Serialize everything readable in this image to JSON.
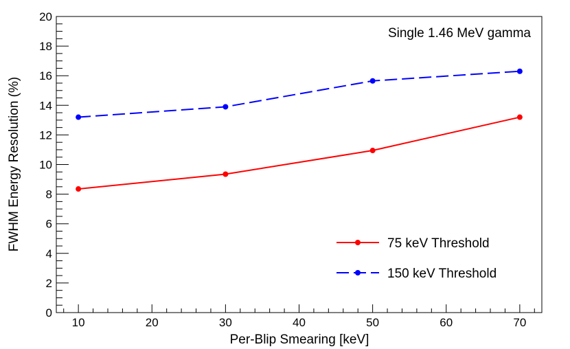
{
  "chart_data": {
    "type": "line",
    "annotation": "Single 1.46 MeV gamma",
    "xlabel": "Per-Blip Smearing [keV]",
    "ylabel": "FWHM Energy Resolution (%)",
    "xlim": [
      7,
      73
    ],
    "ylim": [
      0,
      20
    ],
    "x_ticks": [
      10,
      20,
      30,
      40,
      50,
      60,
      70
    ],
    "x_tick_labels": [
      "10",
      "20",
      "30",
      "40",
      "50",
      "60",
      "70"
    ],
    "y_ticks": [
      0,
      2,
      4,
      6,
      8,
      10,
      12,
      14,
      16,
      18,
      20
    ],
    "y_tick_labels": [
      "0",
      "2",
      "4",
      "6",
      "8",
      "10",
      "12",
      "14",
      "16",
      "18",
      "20"
    ],
    "grid": false,
    "legend_position": "bottom-right",
    "x": [
      10,
      30,
      50,
      70
    ],
    "series": [
      {
        "name": "75 keV Threshold",
        "values": [
          8.35,
          9.35,
          10.95,
          13.2
        ],
        "color": "#ff0000",
        "line_style": "solid"
      },
      {
        "name": "150 keV Threshold",
        "values": [
          13.2,
          13.9,
          15.65,
          16.3
        ],
        "color": "#0000ff",
        "line_style": "dashed"
      }
    ]
  }
}
